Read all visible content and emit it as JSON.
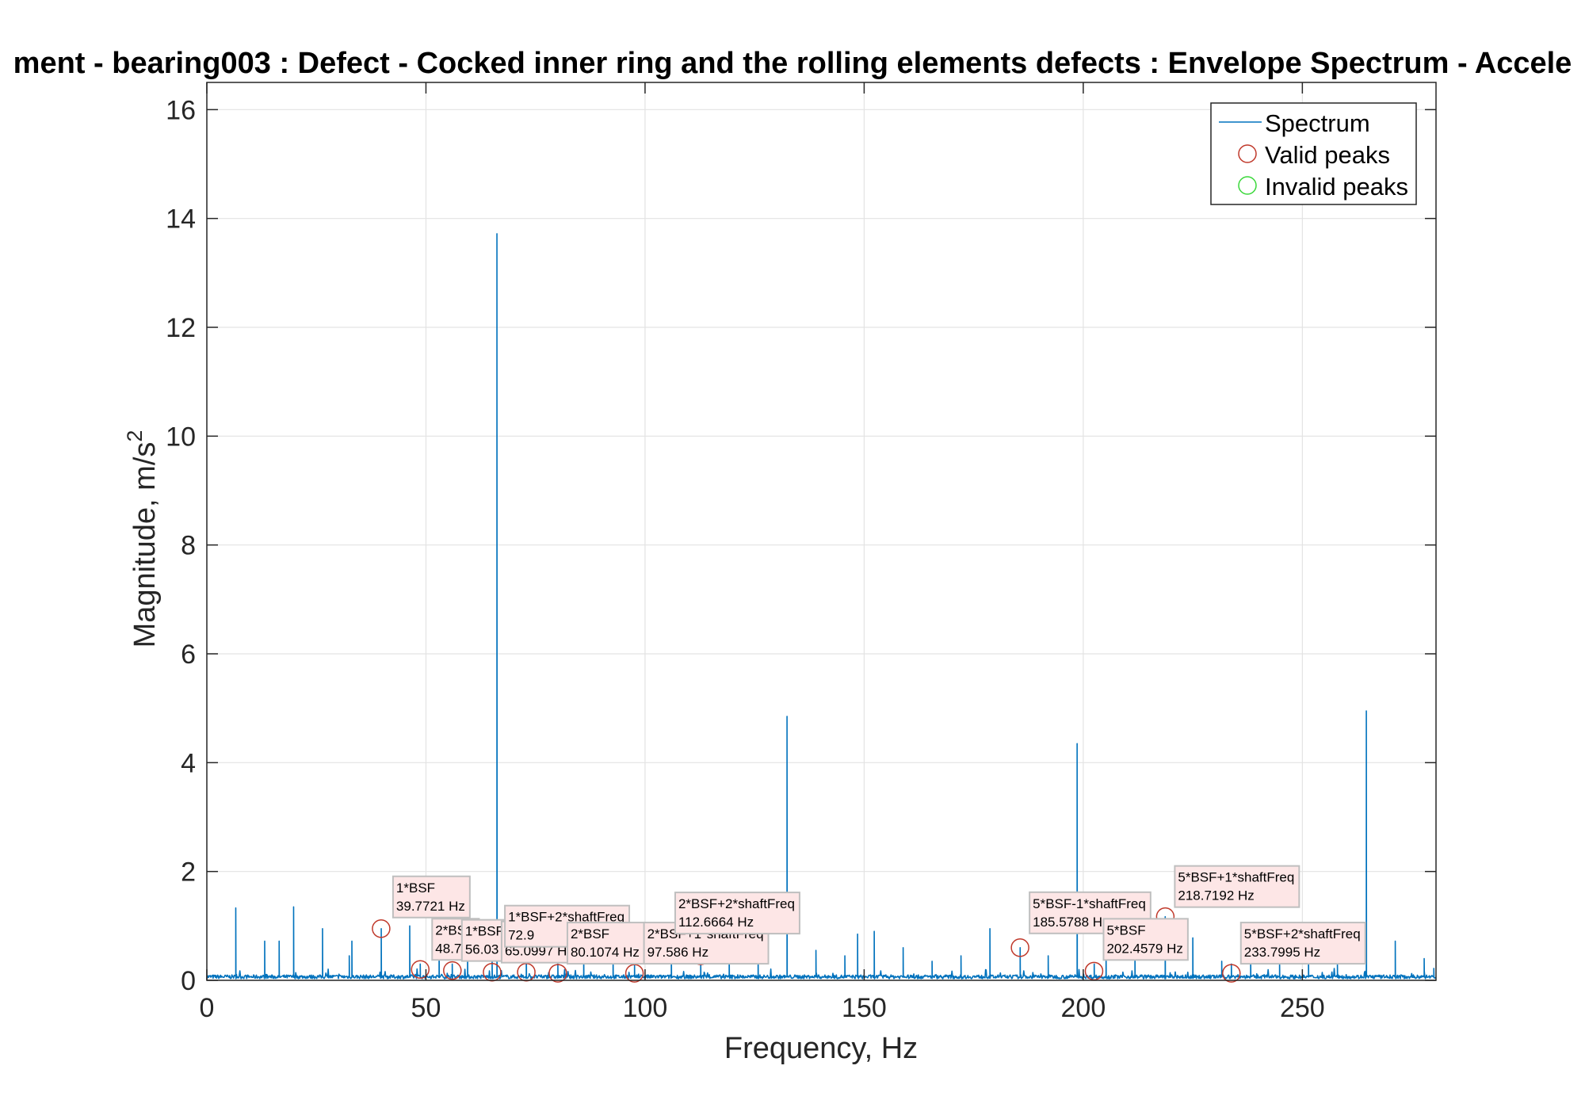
{
  "chart_data": {
    "type": "line",
    "title": "ment - bearing003 : Defect - Cocked inner ring and the rolling elements defects : Envelope Spectrum - Accele",
    "xlabel": "Frequency, Hz",
    "ylabel": "Magnitude, m/s",
    "ylabel_sup": "2",
    "xlim": [
      0,
      280.5
    ],
    "ylim": [
      0,
      16.5
    ],
    "xticks": [
      0,
      50,
      100,
      150,
      200,
      250
    ],
    "yticks": [
      0,
      2,
      4,
      6,
      8,
      10,
      12,
      14,
      16
    ],
    "grid": true,
    "legend_position": "top-right",
    "legend": [
      "Spectrum",
      "Valid peaks",
      "Invalid peaks"
    ],
    "colors": {
      "spectrum": "#0072bd",
      "valid_peak": "#c0392b",
      "invalid_peak": "#3ad83a",
      "annotation_bg": "#fde6e6",
      "annotation_border": "#bfbfbf"
    },
    "spectrum_peaks": [
      [
        6.6,
        1.33
      ],
      [
        13.2,
        0.72
      ],
      [
        16.5,
        0.72
      ],
      [
        19.8,
        1.35
      ],
      [
        26.4,
        0.95
      ],
      [
        32.5,
        0.45
      ],
      [
        33.1,
        0.72
      ],
      [
        39.8,
        0.95
      ],
      [
        46.3,
        1.0
      ],
      [
        48.7,
        0.3
      ],
      [
        53.0,
        0.8
      ],
      [
        56.0,
        0.3
      ],
      [
        59.5,
        0.55
      ],
      [
        65.1,
        0.4
      ],
      [
        66.2,
        13.72
      ],
      [
        72.9,
        0.95
      ],
      [
        80.1,
        0.3
      ],
      [
        86.0,
        0.55
      ],
      [
        92.7,
        0.5
      ],
      [
        97.6,
        0.3
      ],
      [
        106.0,
        0.6
      ],
      [
        112.7,
        0.45
      ],
      [
        119.2,
        0.6
      ],
      [
        125.8,
        0.55
      ],
      [
        132.4,
        4.85
      ],
      [
        139.0,
        0.55
      ],
      [
        145.6,
        0.45
      ],
      [
        148.5,
        0.85
      ],
      [
        152.3,
        0.9
      ],
      [
        158.9,
        0.6
      ],
      [
        165.5,
        0.35
      ],
      [
        172.1,
        0.45
      ],
      [
        178.7,
        0.95
      ],
      [
        185.6,
        0.6
      ],
      [
        192.0,
        0.45
      ],
      [
        198.6,
        4.35
      ],
      [
        202.5,
        0.3
      ],
      [
        205.2,
        0.65
      ],
      [
        211.8,
        0.5
      ],
      [
        218.7,
        1.17
      ],
      [
        225.0,
        0.78
      ],
      [
        231.6,
        0.35
      ],
      [
        233.8,
        0.3
      ],
      [
        238.2,
        0.55
      ],
      [
        244.8,
        0.35
      ],
      [
        251.4,
        0.55
      ],
      [
        258.0,
        0.3
      ],
      [
        264.6,
        4.95
      ],
      [
        271.2,
        0.72
      ],
      [
        277.8,
        0.4
      ],
      [
        280.0,
        0.22
      ]
    ],
    "valid_peaks": [
      {
        "x": 39.7721,
        "y": 0.95,
        "label": "1*BSF",
        "value": "39.7721 Hz"
      },
      {
        "x": 48.7,
        "y": 0.2,
        "label": "2*BSF",
        "value": "48.7"
      },
      {
        "x": 56.03,
        "y": 0.18,
        "label": "1*BSF",
        "value": "56.03"
      },
      {
        "x": 65.0997,
        "y": 0.15,
        "label": "2*BSF",
        "value": "65.0997 H"
      },
      {
        "x": 72.9,
        "y": 0.15,
        "label": "1*BSF+2*shaftFreq",
        "value": "72.9"
      },
      {
        "x": 80.1074,
        "y": 0.13,
        "label": "2*BSF",
        "value": "80.1074 Hz"
      },
      {
        "x": 97.586,
        "y": 0.13,
        "label": "2*BSF+1*shaftFreq",
        "value": "97.586 Hz"
      },
      {
        "x": 112.6664,
        "y": 0.45,
        "label": "2*BSF+2*shaftFreq",
        "value": "112.6664 Hz"
      },
      {
        "x": 185.5788,
        "y": 0.6,
        "label": "5*BSF-1*shaftFreq",
        "value": "185.5788 H"
      },
      {
        "x": 202.4579,
        "y": 0.17,
        "label": "5*BSF",
        "value": "202.4579 Hz"
      },
      {
        "x": 218.7192,
        "y": 1.17,
        "label": "5*BSF+1*shaftFreq",
        "value": "218.7192 Hz"
      },
      {
        "x": 233.7995,
        "y": 0.13,
        "label": "5*BSF+2*shaftFreq",
        "value": "233.7995 Hz"
      }
    ]
  }
}
